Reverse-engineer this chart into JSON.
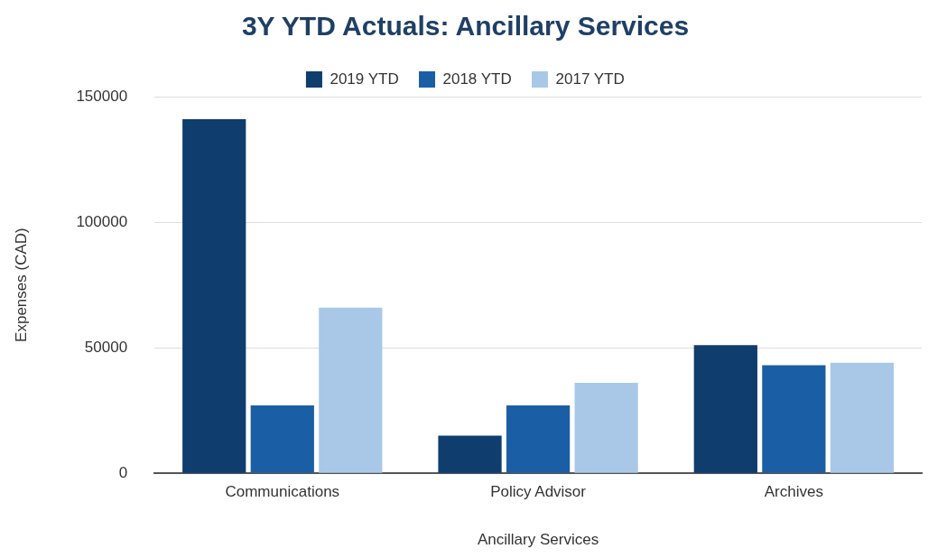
{
  "chart_data": {
    "type": "bar",
    "title": "3Y YTD Actuals: Ancillary Services",
    "xlabel": "Ancillary Services",
    "ylabel": "Expenses (CAD)",
    "categories": [
      "Communications",
      "Policy Advisor",
      "Archives"
    ],
    "series": [
      {
        "name": "2019 YTD",
        "color": "#0e3d6e",
        "values": [
          141000,
          15000,
          51000
        ]
      },
      {
        "name": "2018 YTD",
        "color": "#1a5fa6",
        "values": [
          27000,
          27000,
          43000
        ]
      },
      {
        "name": "2017 YTD",
        "color": "#a9c8e8",
        "values": [
          66000,
          36000,
          44000
        ]
      }
    ],
    "ylim": [
      0,
      150000
    ],
    "yticks": [
      0,
      50000,
      100000,
      150000
    ],
    "grid": "y",
    "legend": "top"
  }
}
